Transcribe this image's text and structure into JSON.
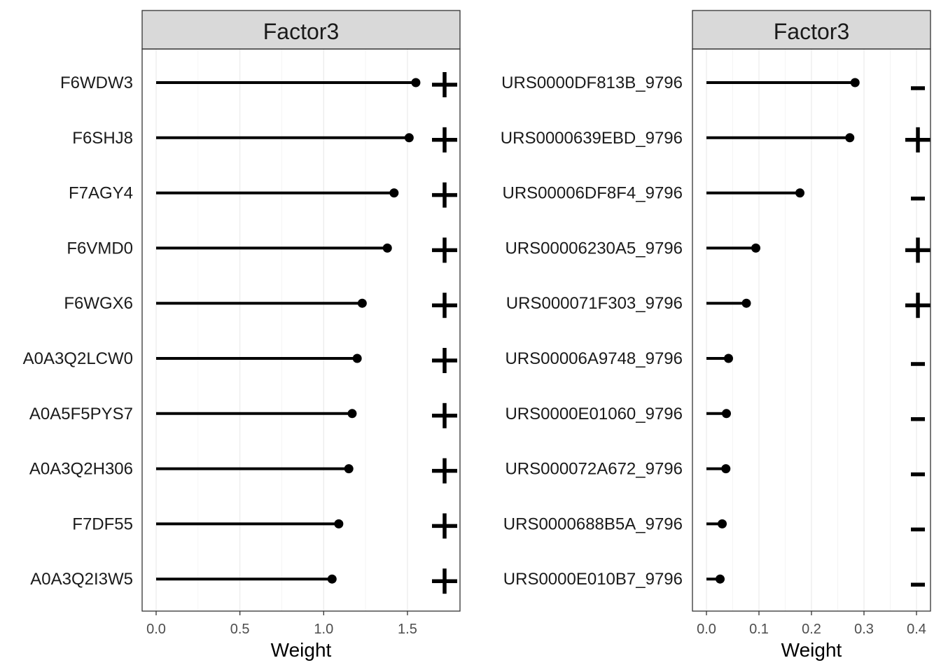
{
  "chart_data": [
    {
      "type": "lollipop",
      "title": "Factor3",
      "xlabel": "Weight",
      "ylabel": "",
      "xlim": [
        0,
        1.73
      ],
      "xticks": [
        0.0,
        0.5,
        1.0,
        1.5
      ],
      "xtick_labels": [
        "0.0",
        "0.5",
        "1.0",
        "1.5"
      ],
      "grid": true,
      "categories": [
        "F6WDW3",
        "F6SHJ8",
        "F7AGY4",
        "F6VMD0",
        "F6WGX6",
        "A0A3Q2LCW0",
        "A0A5F5PYS7",
        "A0A3Q2H306",
        "F7DF55",
        "A0A3Q2I3W5"
      ],
      "values": [
        1.55,
        1.51,
        1.42,
        1.38,
        1.23,
        1.2,
        1.17,
        1.15,
        1.09,
        1.05
      ],
      "signs": [
        "+",
        "+",
        "+",
        "+",
        "+",
        "+",
        "+",
        "+",
        "+",
        "+"
      ]
    },
    {
      "type": "lollipop",
      "title": "Factor3",
      "xlabel": "Weight",
      "ylabel": "",
      "xlim": [
        0,
        0.4
      ],
      "xticks": [
        0.0,
        0.1,
        0.2,
        0.3,
        0.4
      ],
      "xtick_labels": [
        "0.0",
        "0.1",
        "0.2",
        "0.3",
        "0.4"
      ],
      "grid": true,
      "categories": [
        "URS0000DF813B_9796",
        "URS0000639EBD_9796",
        "URS00006DF8F4_9796",
        "URS00006230A5_9796",
        "URS000071F303_9796",
        "URS00006A9748_9796",
        "URS0000E01060_9796",
        "URS000072A672_9796",
        "URS0000688B5A_9796",
        "URS0000E010B7_9796"
      ],
      "values": [
        0.283,
        0.273,
        0.178,
        0.094,
        0.076,
        0.042,
        0.038,
        0.037,
        0.03,
        0.026
      ],
      "signs": [
        "-",
        "+",
        "-",
        "+",
        "+",
        "-",
        "-",
        "-",
        "-",
        "-"
      ]
    }
  ]
}
